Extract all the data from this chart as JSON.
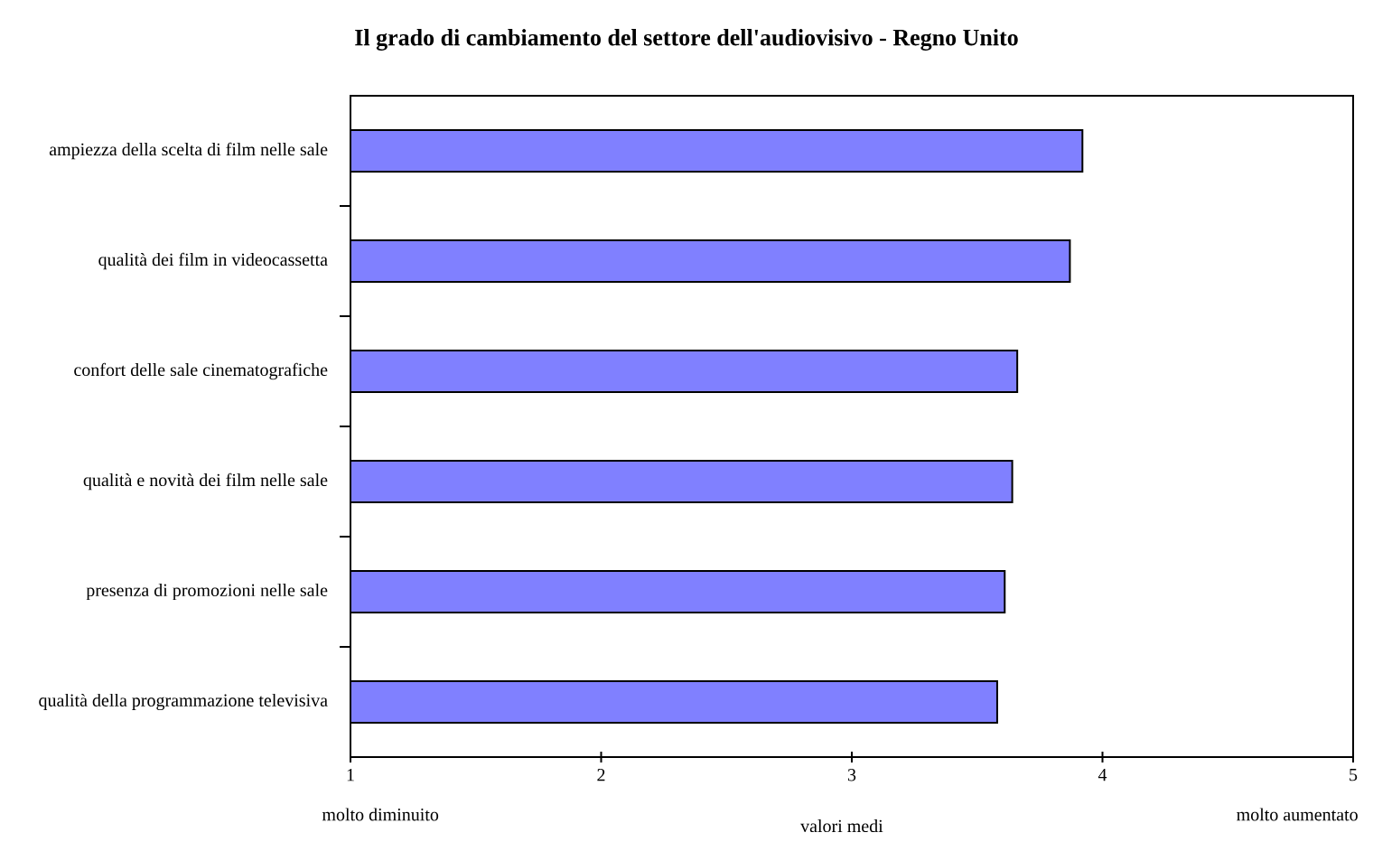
{
  "chart_data": {
    "type": "bar",
    "orientation": "horizontal",
    "title": "Il grado di cambiamento del settore dell'audiovisivo - Regno Unito",
    "xlabel": "valori medi",
    "categories": [
      "ampiezza della scelta di film nelle sale",
      "qualità dei film in videocassetta",
      "confort delle sale cinematografiche",
      "qualità e novità dei film nelle sale",
      "presenza di promozioni nelle sale",
      "qualità della programmazione televisiva"
    ],
    "values": [
      3.92,
      3.87,
      3.66,
      3.64,
      3.61,
      3.58
    ],
    "color": "#8080ff",
    "xlim": [
      1,
      5
    ],
    "xticks": [
      1,
      2,
      3,
      4,
      5
    ],
    "annotations": [
      "molto diminuito",
      "molto aumentato"
    ]
  }
}
